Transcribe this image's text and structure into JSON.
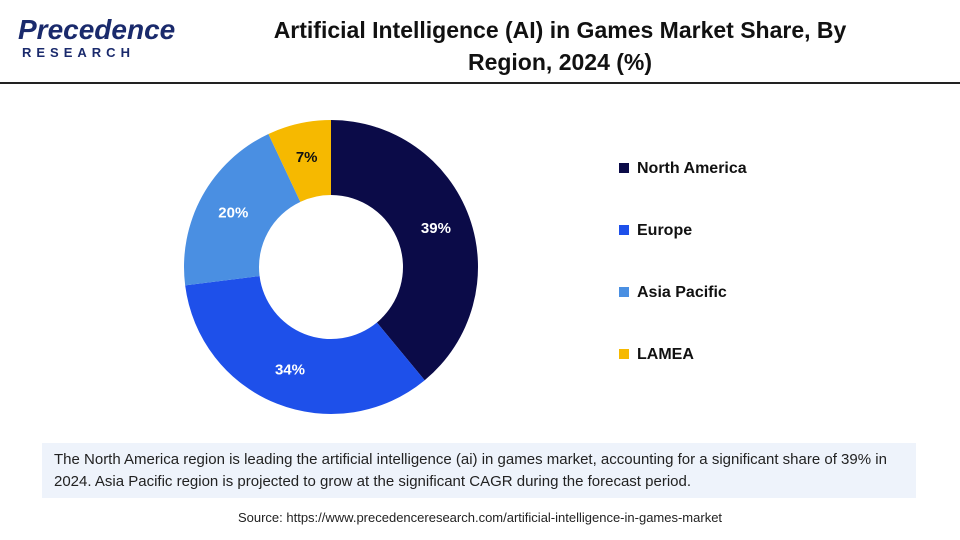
{
  "logo": {
    "name": "Precedence",
    "tagline": "RESEARCH"
  },
  "chart_data": {
    "type": "donut",
    "title": "Artificial Intelligence (AI) in Games Market Share, By Region, 2024 (%)",
    "series": [
      {
        "name": "North America",
        "color": "#0b0b48",
        "values": [
          39
        ],
        "value_labels": [
          "39%"
        ]
      },
      {
        "name": "Europe",
        "color": "#1e50ea",
        "values": [
          34
        ],
        "value_labels": [
          "34%"
        ]
      },
      {
        "name": "Asia Pacific",
        "color": "#4a8fe2",
        "values": [
          20
        ],
        "value_labels": [
          "20%"
        ]
      },
      {
        "name": "LAMEA",
        "color": "#f6b900",
        "values": [
          7
        ],
        "value_labels": [
          "7%"
        ]
      }
    ],
    "legend": "right",
    "description": "The North America region is leading the artificial intelligence (ai) in games market, accounting for a significant share of 39% in 2024. Asia Pacific region is projected to grow at the significant CAGR during the forecast period.",
    "source": "Source: https://www.precedenceresearch.com/artificial-intelligence-in-games-market"
  }
}
